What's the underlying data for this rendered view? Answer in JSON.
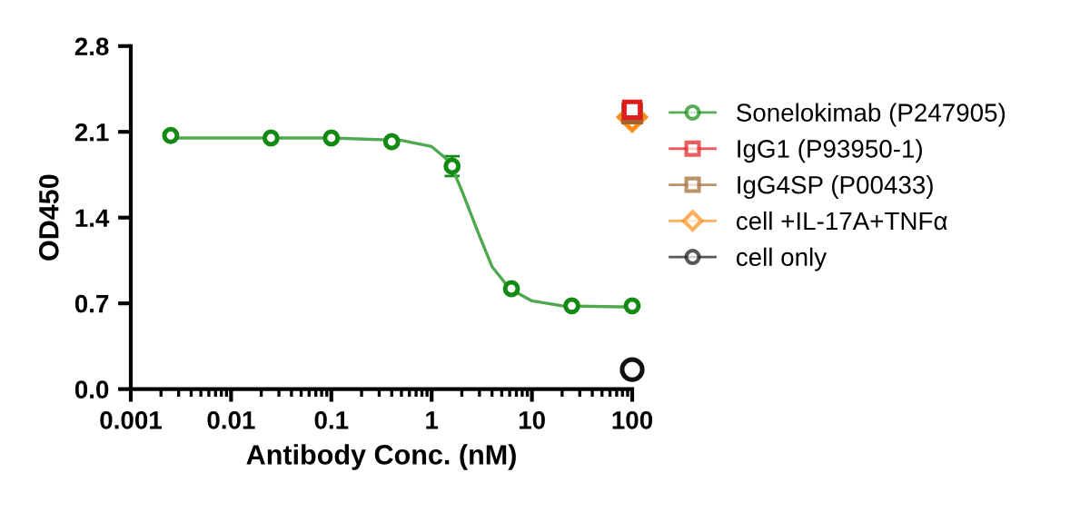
{
  "chart_data": {
    "type": "scatter",
    "xlabel": "Antibody Conc. (nM)",
    "ylabel": "OD450",
    "log": "x",
    "xlim": [
      0.001,
      100
    ],
    "xticks": [
      0.001,
      0.01,
      0.1,
      1,
      10,
      100
    ],
    "ylim": [
      0,
      2.8
    ],
    "yticks": [
      {
        "value": 0,
        "label": "0.0"
      },
      0.7,
      1.4,
      2.1,
      2.8
    ],
    "grid": false,
    "legend": "right",
    "series": [
      {
        "name": "Sonelokimab (P247905)",
        "color": "#138a13",
        "marker": "circle",
        "x": [
          0.0025,
          0.025,
          0.1,
          0.4,
          1.6,
          6.25,
          25,
          100
        ],
        "values": [
          2.07,
          2.05,
          2.05,
          2.02,
          1.82,
          0.82,
          0.68,
          0.68
        ],
        "errors": [
          null,
          null,
          null,
          null,
          0.08,
          null,
          null,
          null
        ]
      },
      {
        "type": "line",
        "color": "#4fa84f",
        "marker": "none",
        "x": [
          0.0025,
          0.1,
          0.5,
          1,
          1.5,
          2,
          3,
          4,
          6,
          10,
          20,
          100
        ],
        "values": [
          2.05,
          2.05,
          2.03,
          1.98,
          1.86,
          1.62,
          1.25,
          1.0,
          0.82,
          0.72,
          0.68,
          0.67
        ]
      },
      {
        "name": "IgG1 (P93950-1)",
        "color": "#e31a1c",
        "marker": "square",
        "x": [
          100
        ],
        "values": [
          2.28
        ]
      },
      {
        "name": "IgG4SP (P00433)",
        "color": "#a0642a",
        "marker": "square",
        "x": [
          100
        ],
        "values": [
          2.25
        ]
      },
      {
        "name": "cell +IL-17A+TNFα",
        "color": "#ff8c1a",
        "marker": "diamond",
        "x": [
          100
        ],
        "values": [
          2.22
        ]
      },
      {
        "name": "cell only",
        "color": "#111111",
        "marker": "circle",
        "x": [
          100
        ],
        "values": [
          0.16
        ]
      }
    ]
  }
}
